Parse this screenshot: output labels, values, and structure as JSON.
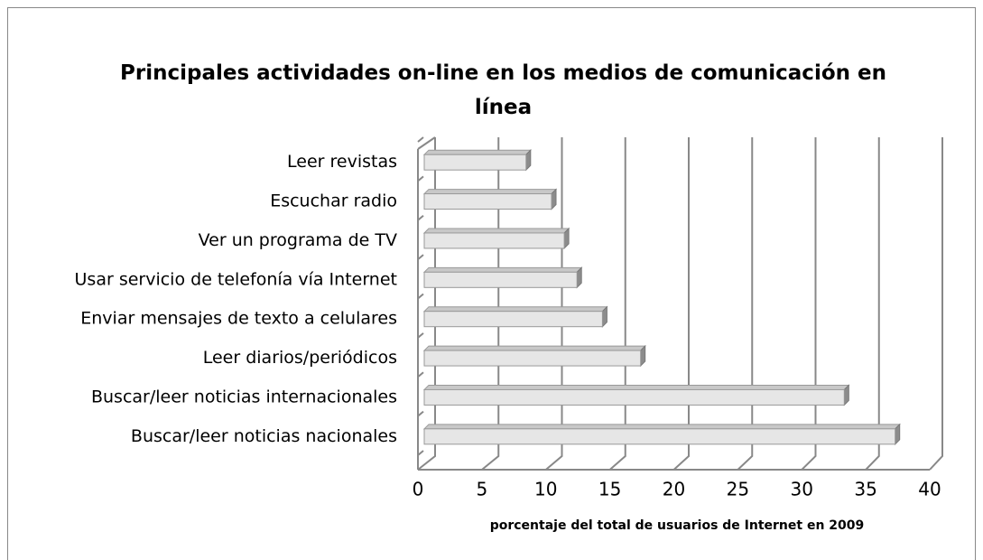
{
  "chart_data": {
    "type": "bar3d",
    "title": "Principales actividades on-line en los medios de comunicación en línea",
    "categories": [
      "Leer revistas",
      "Escuchar radio",
      "Ver un programa de TV",
      "Usar servicio de telefonía vía Internet",
      "Enviar mensajes de texto a celulares",
      "Leer diarios/periódicos",
      "Buscar/leer noticias internacionales",
      "Buscar/leer noticias nacionales"
    ],
    "values": [
      8,
      10,
      11,
      12,
      14,
      17,
      33,
      37
    ],
    "color": "#e6e6e6",
    "xlim": [
      0,
      40
    ],
    "xticks": [
      0,
      5,
      10,
      15,
      20,
      25,
      30,
      35,
      40
    ],
    "x_label": "porcentaje del total de usuarios de Internet en 2009",
    "grid": true
  }
}
